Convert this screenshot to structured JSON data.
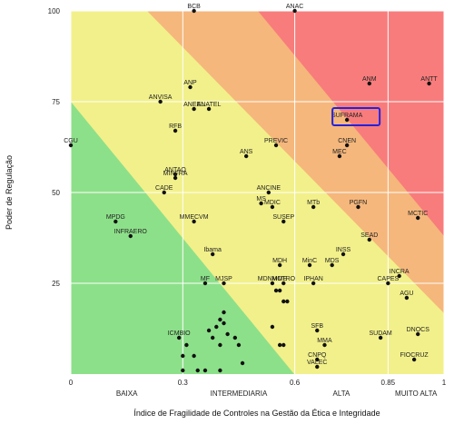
{
  "chart_data": {
    "type": "scatter",
    "title": "",
    "xlabel": "Índice de Fragilidade de Controles na Gestão da Ética e Integridade",
    "ylabel": "Poder de Regulação",
    "xlim": [
      0,
      1
    ],
    "ylim": [
      0,
      100
    ],
    "x_ticks": [
      {
        "value": 0,
        "label": "0"
      },
      {
        "value": 0.3,
        "label": "0.3"
      },
      {
        "value": 0.6,
        "label": "0.6"
      },
      {
        "value": 0.85,
        "label": "0.85"
      },
      {
        "value": 1,
        "label": "1"
      }
    ],
    "y_ticks": [
      {
        "value": 25,
        "label": "25"
      },
      {
        "value": 50,
        "label": "50"
      },
      {
        "value": 75,
        "label": "75"
      },
      {
        "value": 100,
        "label": "100"
      }
    ],
    "x_categories": [
      {
        "label": "BAIXA",
        "x": 0.15
      },
      {
        "label": "INTERMEDIARIA",
        "x": 0.45
      },
      {
        "label": "ALTA",
        "x": 0.725
      },
      {
        "label": "MUITO ALTA",
        "x": 0.925
      }
    ],
    "grid": true,
    "background_zones": [
      {
        "name": "baixa",
        "color": "#8de08a"
      },
      {
        "name": "intermediaria",
        "color": "#f2f08a"
      },
      {
        "name": "alta",
        "color": "#f5b77c"
      },
      {
        "name": "muito_alta",
        "color": "#f87c7c"
      }
    ],
    "highlight": {
      "label": "SUFRAMA",
      "color": "#2222dd"
    },
    "points": [
      {
        "label": "BCB",
        "x": 0.33,
        "y": 100
      },
      {
        "label": "ANAC",
        "x": 0.6,
        "y": 100
      },
      {
        "label": "ANM",
        "x": 0.8,
        "y": 80
      },
      {
        "label": "ANTT",
        "x": 0.96,
        "y": 80
      },
      {
        "label": "ANP",
        "x": 0.32,
        "y": 79
      },
      {
        "label": "ANVISA",
        "x": 0.24,
        "y": 75
      },
      {
        "label": "ANEEL",
        "x": 0.33,
        "y": 73
      },
      {
        "label": "ANATEL",
        "x": 0.37,
        "y": 73
      },
      {
        "label": "SUFRAMA",
        "x": 0.74,
        "y": 70
      },
      {
        "label": "RFB",
        "x": 0.28,
        "y": 67
      },
      {
        "label": "CGU",
        "x": 0.0,
        "y": 63
      },
      {
        "label": "PREVIC",
        "x": 0.55,
        "y": 63
      },
      {
        "label": "CNEN",
        "x": 0.74,
        "y": 63
      },
      {
        "label": "ANS",
        "x": 0.47,
        "y": 60
      },
      {
        "label": "MEC",
        "x": 0.72,
        "y": 60
      },
      {
        "label": "ANTAQ",
        "x": 0.28,
        "y": 55
      },
      {
        "label": "MINFRA",
        "x": 0.28,
        "y": 54
      },
      {
        "label": "CADE",
        "x": 0.25,
        "y": 50
      },
      {
        "label": "ANCINE",
        "x": 0.53,
        "y": 50
      },
      {
        "label": "MS",
        "x": 0.51,
        "y": 47
      },
      {
        "label": "MDIC",
        "x": 0.54,
        "y": 46
      },
      {
        "label": "MTb",
        "x": 0.65,
        "y": 46
      },
      {
        "label": "PGFN",
        "x": 0.77,
        "y": 46
      },
      {
        "label": "MCTIC",
        "x": 0.93,
        "y": 43
      },
      {
        "label": "MPDG",
        "x": 0.12,
        "y": 42
      },
      {
        "label": "MMECVM",
        "x": 0.33,
        "y": 42
      },
      {
        "label": "SUSEP",
        "x": 0.57,
        "y": 42
      },
      {
        "label": "INFRAERO",
        "x": 0.16,
        "y": 38
      },
      {
        "label": "SEAD",
        "x": 0.8,
        "y": 37
      },
      {
        "label": "Ibama",
        "x": 0.38,
        "y": 33
      },
      {
        "label": "INSS",
        "x": 0.73,
        "y": 33
      },
      {
        "label": "MDH",
        "x": 0.56,
        "y": 30
      },
      {
        "label": "MinC",
        "x": 0.64,
        "y": 30
      },
      {
        "label": "MDS",
        "x": 0.7,
        "y": 30
      },
      {
        "label": "INCRA",
        "x": 0.88,
        "y": 27
      },
      {
        "label": "MF",
        "x": 0.36,
        "y": 25
      },
      {
        "label": "MJSP",
        "x": 0.41,
        "y": 25
      },
      {
        "label": "MDNMME",
        "x": 0.54,
        "y": 25
      },
      {
        "label": "MCTRO",
        "x": 0.57,
        "y": 25
      },
      {
        "label": "IPHAN",
        "x": 0.65,
        "y": 25
      },
      {
        "label": "CAPES",
        "x": 0.85,
        "y": 25
      },
      {
        "label": "AGU",
        "x": 0.9,
        "y": 21
      },
      {
        "label": "SFB",
        "x": 0.66,
        "y": 12
      },
      {
        "label": "DNOCS",
        "x": 0.93,
        "y": 11
      },
      {
        "label": "ICMBIO",
        "x": 0.29,
        "y": 10
      },
      {
        "label": "SUDAM",
        "x": 0.83,
        "y": 10
      },
      {
        "label": "MMA",
        "x": 0.68,
        "y": 8
      },
      {
        "label": "CNPQ",
        "x": 0.66,
        "y": 4
      },
      {
        "label": "FIOCRUZ",
        "x": 0.92,
        "y": 4
      },
      {
        "label": "VALEC",
        "x": 0.66,
        "y": 2
      },
      {
        "label": "",
        "x": 0.55,
        "y": 23
      },
      {
        "label": "",
        "x": 0.56,
        "y": 23
      },
      {
        "label": "",
        "x": 0.57,
        "y": 20
      },
      {
        "label": "",
        "x": 0.58,
        "y": 20
      },
      {
        "label": "",
        "x": 0.54,
        "y": 13
      },
      {
        "label": "",
        "x": 0.56,
        "y": 8
      },
      {
        "label": "",
        "x": 0.57,
        "y": 8
      },
      {
        "label": "",
        "x": 0.41,
        "y": 17
      },
      {
        "label": "",
        "x": 0.4,
        "y": 15
      },
      {
        "label": "",
        "x": 0.41,
        "y": 14
      },
      {
        "label": "",
        "x": 0.39,
        "y": 13
      },
      {
        "label": "",
        "x": 0.37,
        "y": 12
      },
      {
        "label": "",
        "x": 0.42,
        "y": 11
      },
      {
        "label": "",
        "x": 0.38,
        "y": 10
      },
      {
        "label": "",
        "x": 0.44,
        "y": 10
      },
      {
        "label": "",
        "x": 0.45,
        "y": 8
      },
      {
        "label": "",
        "x": 0.31,
        "y": 8
      },
      {
        "label": "",
        "x": 0.4,
        "y": 8
      },
      {
        "label": "",
        "x": 0.3,
        "y": 5
      },
      {
        "label": "",
        "x": 0.33,
        "y": 5
      },
      {
        "label": "",
        "x": 0.46,
        "y": 3
      },
      {
        "label": "",
        "x": 0.3,
        "y": 1
      },
      {
        "label": "",
        "x": 0.34,
        "y": 1
      },
      {
        "label": "",
        "x": 0.36,
        "y": 1
      },
      {
        "label": "",
        "x": 0.4,
        "y": 1
      }
    ]
  }
}
